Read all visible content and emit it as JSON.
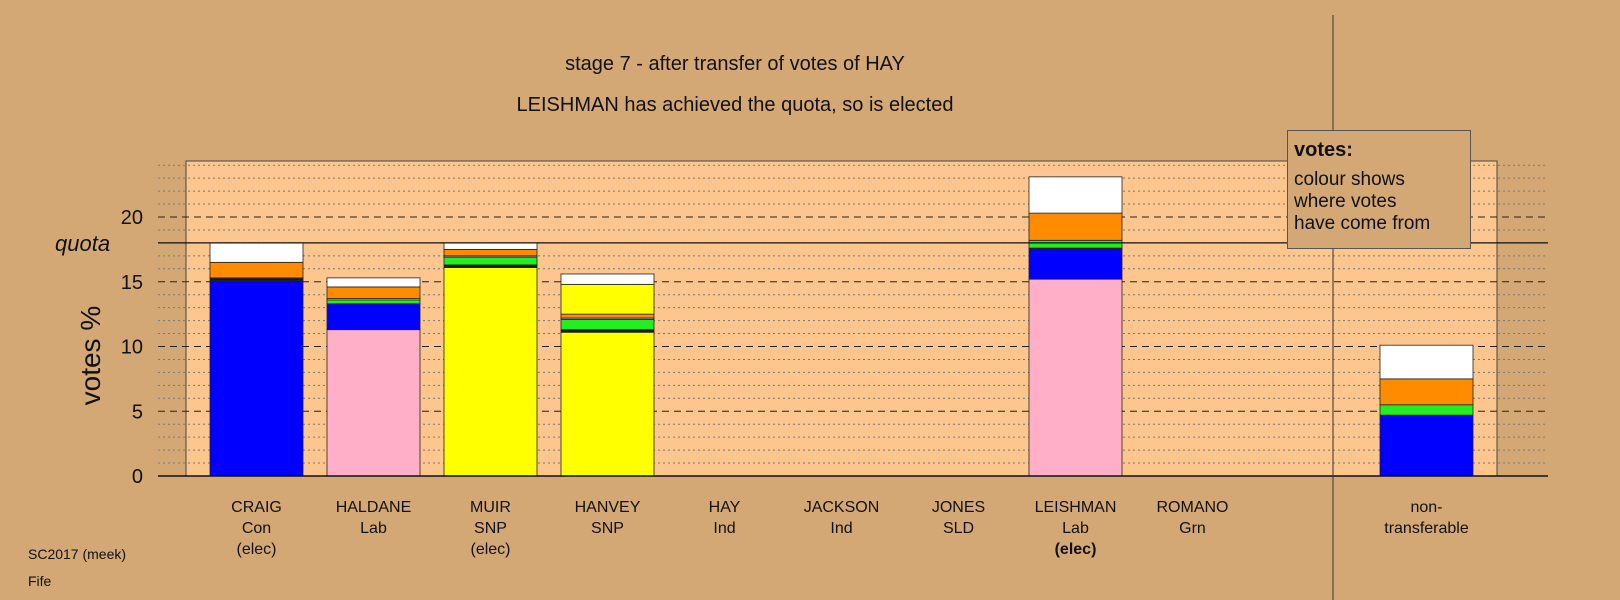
{
  "chart_data": {
    "type": "bar",
    "stacked": true,
    "title": "stage 7 - after transfer of votes of HAY",
    "subtitle": "LEISHMAN has achieved the quota, so is elected",
    "ylabel": "votes %",
    "xlabel": "",
    "ylim": [
      0,
      24.5
    ],
    "yticks": [
      0,
      5,
      10,
      15,
      20
    ],
    "quota": 18.0,
    "quota_label": "quota",
    "grid": true,
    "categories": [
      {
        "name": "CRAIG",
        "party": "Con",
        "status": "(elec)",
        "status_bold": false
      },
      {
        "name": "HALDANE",
        "party": "Lab",
        "status": "",
        "status_bold": false
      },
      {
        "name": "MUIR",
        "party": "SNP",
        "status": "(elec)",
        "status_bold": false
      },
      {
        "name": "HANVEY",
        "party": "SNP",
        "status": "",
        "status_bold": false
      },
      {
        "name": "HAY",
        "party": "Ind",
        "status": "",
        "status_bold": false
      },
      {
        "name": "JACKSON",
        "party": "Ind",
        "status": "",
        "status_bold": false
      },
      {
        "name": "JONES",
        "party": "SLD",
        "status": "",
        "status_bold": false
      },
      {
        "name": "LEISHMAN",
        "party": "Lab",
        "status": "(elec)",
        "status_bold": true
      },
      {
        "name": "ROMANO",
        "party": "Grn",
        "status": "",
        "status_bold": false
      },
      {
        "name": "non-",
        "party": "transferable",
        "status": "",
        "status_bold": false
      }
    ],
    "segment_colors": {
      "Con": "#0000ff",
      "Lab": "#ffb0c8",
      "SNP": "#ffff00",
      "SLD": "#ff8c00",
      "Grn": "#22ee22",
      "Ind": "#ffffff",
      "other": "#1a1a1a"
    },
    "stacks": [
      [
        {
          "party": "Con",
          "value": 15.1
        },
        {
          "party": "other",
          "value": 0.15
        },
        {
          "party": "SNP",
          "value": 0.05
        },
        {
          "party": "SLD",
          "value": 1.2
        },
        {
          "party": "Ind",
          "value": 1.5
        }
      ],
      [
        {
          "party": "Lab",
          "value": 11.3
        },
        {
          "party": "Con",
          "value": 2.0
        },
        {
          "party": "Grn",
          "value": 0.3
        },
        {
          "party": "SNP",
          "value": 0.1
        },
        {
          "party": "SLD",
          "value": 0.9
        },
        {
          "party": "Ind",
          "value": 0.7
        }
      ],
      [
        {
          "party": "SNP",
          "value": 16.1
        },
        {
          "party": "other",
          "value": 0.2
        },
        {
          "party": "Grn",
          "value": 0.6
        },
        {
          "party": "Lab",
          "value": 0.1
        },
        {
          "party": "SLD",
          "value": 0.5
        },
        {
          "party": "Ind",
          "value": 0.5
        }
      ],
      [
        {
          "party": "SNP",
          "value": 11.1
        },
        {
          "party": "other",
          "value": 0.2
        },
        {
          "party": "Grn",
          "value": 0.8
        },
        {
          "party": "Lab",
          "value": 0.1
        },
        {
          "party": "SLD",
          "value": 0.3
        },
        {
          "party": "SNP",
          "value": 2.3
        },
        {
          "party": "Ind",
          "value": 0.8
        }
      ],
      [],
      [],
      [],
      [
        {
          "party": "Lab",
          "value": 15.2
        },
        {
          "party": "Con",
          "value": 2.3
        },
        {
          "party": "other",
          "value": 0.1
        },
        {
          "party": "Grn",
          "value": 0.6
        },
        {
          "party": "SLD",
          "value": 2.1
        },
        {
          "party": "Ind",
          "value": 2.8
        }
      ],
      [],
      [
        {
          "party": "Con",
          "value": 4.7
        },
        {
          "party": "Grn",
          "value": 0.8
        },
        {
          "party": "SLD",
          "value": 2.0
        },
        {
          "party": "Ind",
          "value": 2.6
        }
      ]
    ]
  },
  "legend": {
    "title": "votes:",
    "lines": [
      "colour shows",
      "where votes",
      "have come from"
    ]
  },
  "footer": {
    "line1": "SC2017 (meek)",
    "line2": "Fife"
  },
  "colors": {
    "background": "#d4a874",
    "plot_area": "#fdc68e"
  }
}
